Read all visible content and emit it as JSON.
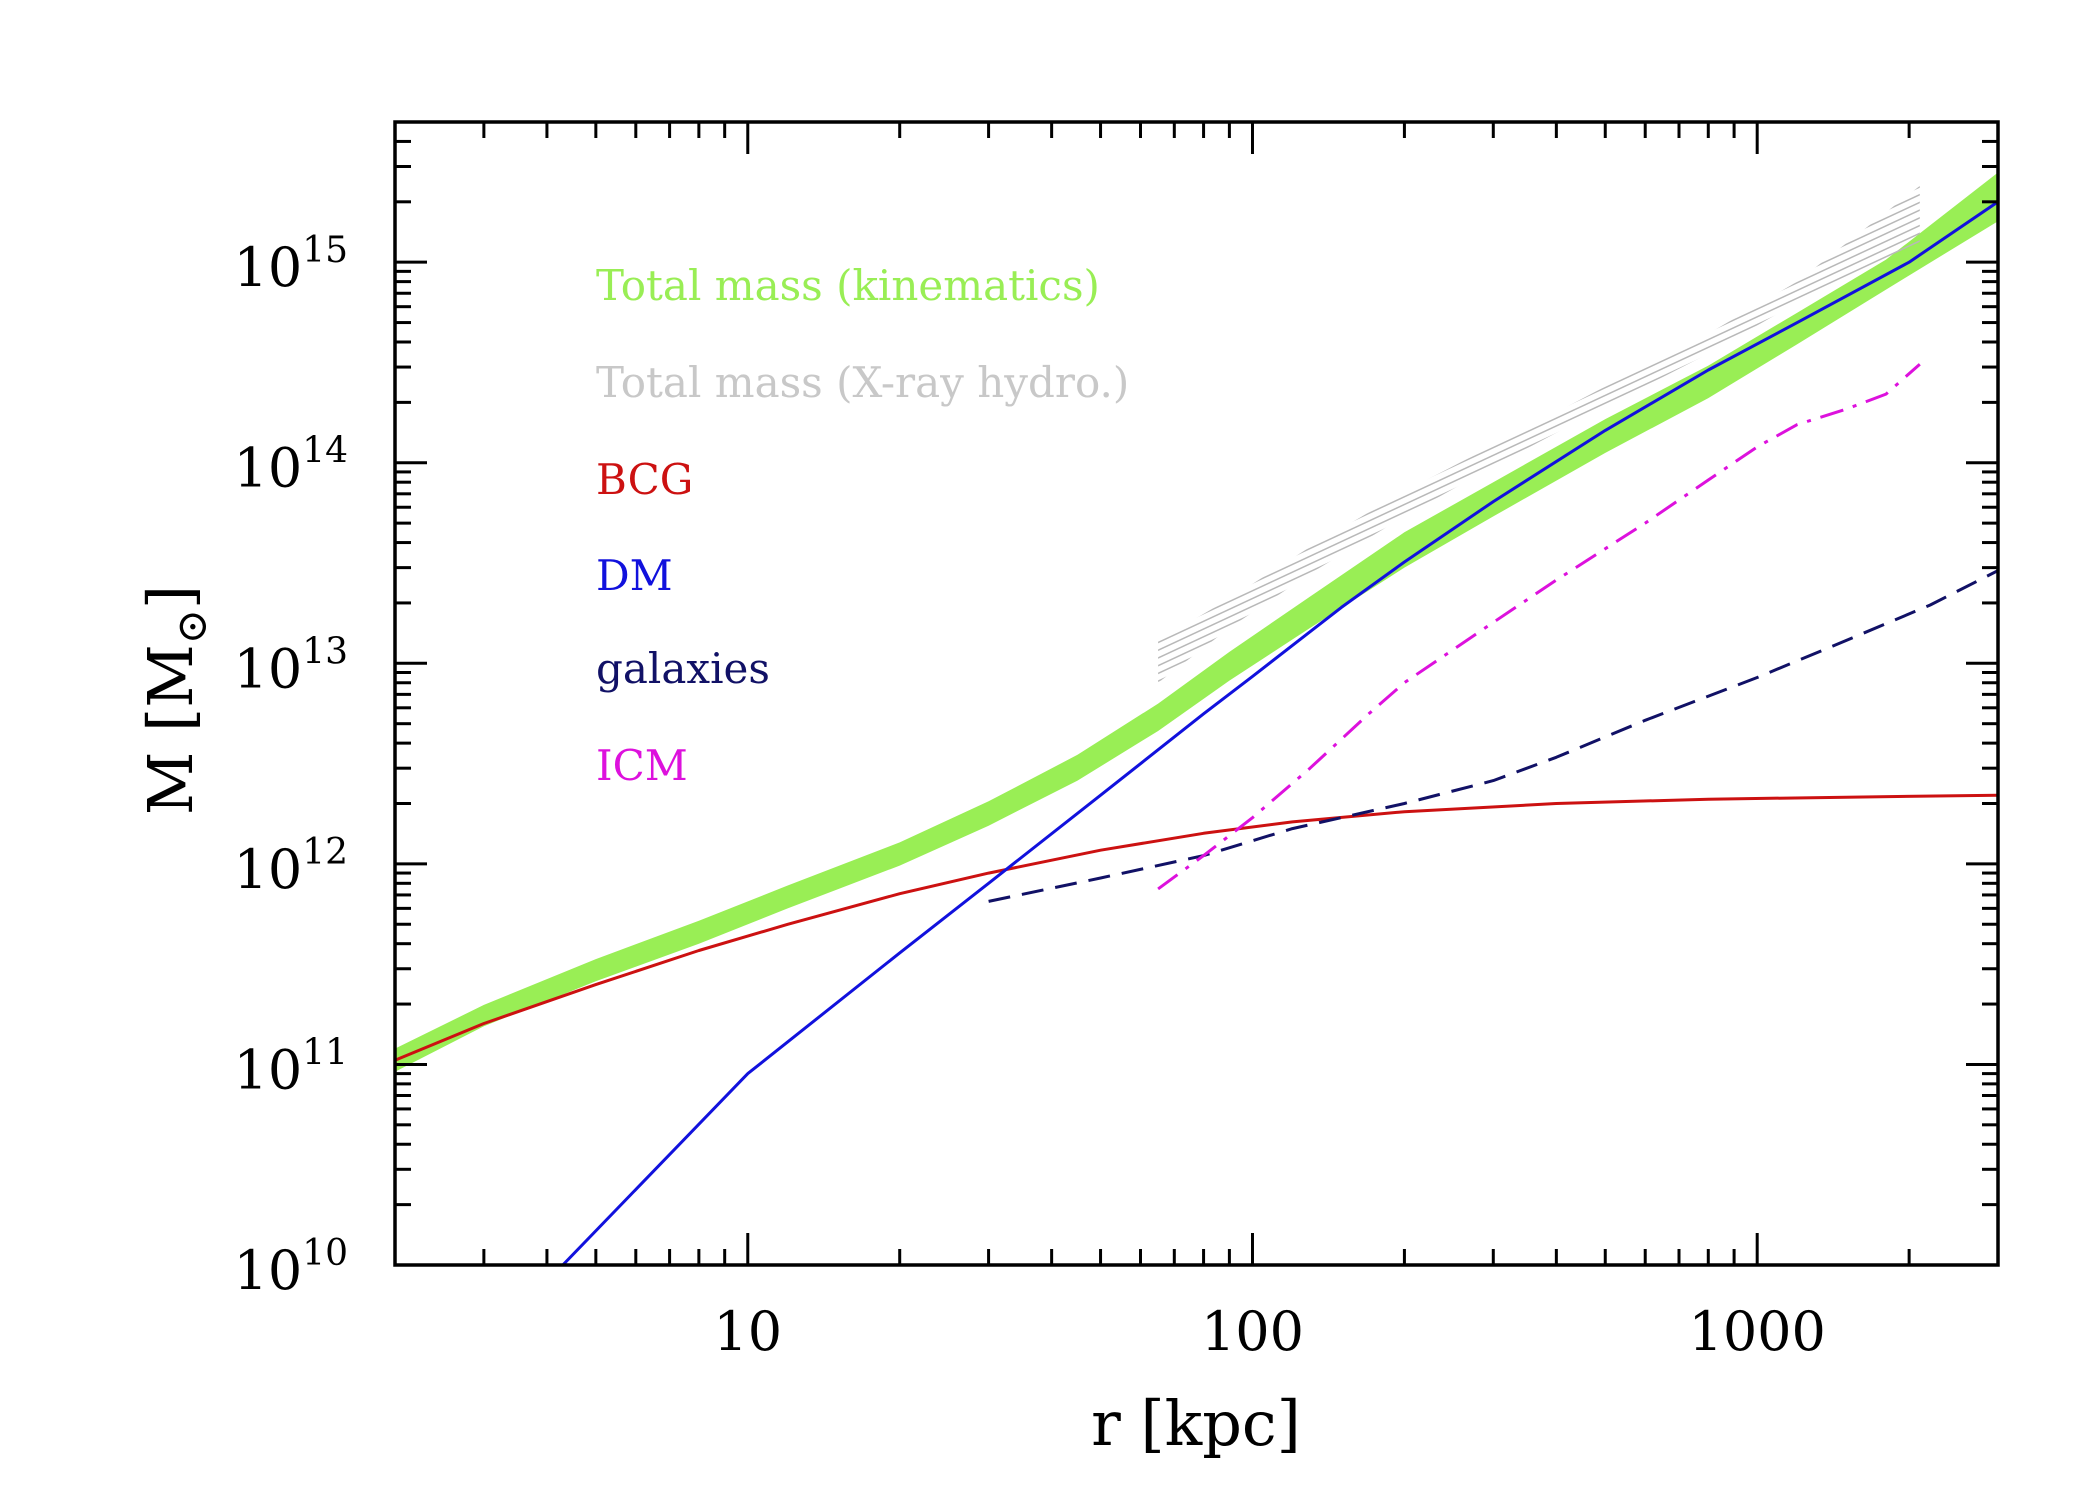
{
  "chart_data": {
    "type": "line",
    "xlabel": "r [kpc]",
    "ylabel": {
      "main": "M [M",
      "sub": "⊙",
      "close": "]"
    },
    "xscale": "log",
    "yscale": "log",
    "xlim": [
      2,
      3000
    ],
    "ylim": [
      10000000000.0,
      5000000000000000.0
    ],
    "xticks": [
      {
        "value": 10,
        "label": "10"
      },
      {
        "value": 100,
        "label": "100"
      },
      {
        "value": 1000,
        "label": "1000"
      }
    ],
    "yticks": [
      {
        "value": 10000000000.0,
        "base": "10",
        "exp": "10"
      },
      {
        "value": 100000000000.0,
        "base": "10",
        "exp": "11"
      },
      {
        "value": 1000000000000.0,
        "base": "10",
        "exp": "12"
      },
      {
        "value": 10000000000000.0,
        "base": "10",
        "exp": "13"
      },
      {
        "value": 100000000000000.0,
        "base": "10",
        "exp": "14"
      },
      {
        "value": 1000000000000000.0,
        "base": "10",
        "exp": "15"
      }
    ],
    "series": [
      {
        "name": "Total mass (kinematics)",
        "color": "#99ee55",
        "style": "band",
        "x": [
          2,
          3,
          5,
          8,
          12,
          20,
          30,
          45,
          65,
          90,
          130,
          200,
          300,
          500,
          800,
          1200,
          1800,
          3000
        ],
        "lower": [
          92000000000.0,
          155000000000.0,
          260000000000.0,
          400000000000.0,
          600000000000.0,
          980000000000.0,
          1550000000000.0,
          2600000000000.0,
          4600000000000.0,
          8200000000000.0,
          15000000000000.0,
          30000000000000.0,
          54000000000000.0,
          112000000000000.0,
          210000000000000.0,
          390000000000000.0,
          730000000000000.0,
          1600000000000000.0
        ],
        "upper": [
          120000000000.0,
          198000000000.0,
          335000000000.0,
          520000000000.0,
          780000000000.0,
          1280000000000.0,
          2050000000000.0,
          3500000000000.0,
          6300000000000.0,
          11400000000000.0,
          21500000000000.0,
          45000000000000.0,
          80000000000000.0,
          165000000000000.0,
          305000000000000.0,
          560000000000000.0,
          1030000000000000.0,
          2800000000000000.0
        ]
      },
      {
        "name": "Total mass (X-ray hydro.)",
        "color": "#c8c8c8",
        "style": "hatched-band",
        "x": [
          65,
          90,
          130,
          200,
          300,
          500,
          800,
          1200,
          2100
        ],
        "lower": [
          8000000000000.0,
          15000000000000.0,
          28000000000000.0,
          54000000000000.0,
          96000000000000.0,
          190000000000000.0,
          350000000000000.0,
          630000000000000.0,
          1250000000000000.0
        ],
        "upper": [
          13000000000000.0,
          21000000000000.0,
          38000000000000.0,
          72000000000000.0,
          122000000000000.0,
          240000000000000.0,
          440000000000000.0,
          800000000000000.0,
          2400000000000000.0
        ]
      },
      {
        "name": "BCG",
        "color": "#cc1111",
        "style": "solid",
        "x": [
          2,
          3,
          5,
          8,
          12,
          20,
          30,
          50,
          80,
          120,
          200,
          400,
          800,
          1500,
          3000
        ],
        "y": [
          105000000000.0,
          160000000000.0,
          250000000000.0,
          370000000000.0,
          500000000000.0,
          710000000000.0,
          900000000000.0,
          1170000000000.0,
          1420000000000.0,
          1620000000000.0,
          1820000000000.0,
          2000000000000.0,
          2100000000000.0,
          2150000000000.0,
          2200000000000.0
        ]
      },
      {
        "name": "DM",
        "color": "#1111dd",
        "style": "solid",
        "x": [
          4.3,
          10,
          20,
          30,
          50,
          80,
          100,
          150,
          200,
          300,
          500,
          800,
          1200,
          2000,
          3000
        ],
        "y": [
          10000000000.0,
          90000000000.0,
          360000000000.0,
          800000000000.0,
          2200000000000.0,
          5600000000000.0,
          8600000000000.0,
          19000000000000.0,
          32000000000000.0,
          64000000000000.0,
          145000000000000.0,
          290000000000000.0,
          500000000000000.0,
          1000000000000000.0,
          2000000000000000.0
        ]
      },
      {
        "name": "galaxies",
        "color": "#111166",
        "style": "dashed",
        "x": [
          30,
          50,
          80,
          120,
          200,
          300,
          400,
          600,
          1000,
          1500,
          2200,
          3000
        ],
        "y": [
          650000000000.0,
          850000000000.0,
          1100000000000.0,
          1500000000000.0,
          2000000000000.0,
          2600000000000.0,
          3400000000000.0,
          5200000000000.0,
          8500000000000.0,
          13000000000000.0,
          19500000000000.0,
          29000000000000.0
        ]
      },
      {
        "name": "ICM",
        "color": "#dd11dd",
        "style": "dashdot",
        "x": [
          65,
          80,
          100,
          130,
          170,
          200,
          300,
          400,
          600,
          800,
          1000,
          1200,
          1500,
          1800,
          2100
        ],
        "y": [
          750000000000.0,
          1100000000000.0,
          1700000000000.0,
          3000000000000.0,
          5600000000000.0,
          8000000000000.0,
          16000000000000.0,
          26000000000000.0,
          50000000000000.0,
          82000000000000.0,
          120000000000000.0,
          155000000000000.0,
          185000000000000.0,
          220000000000000.0,
          310000000000000.0
        ]
      }
    ]
  }
}
